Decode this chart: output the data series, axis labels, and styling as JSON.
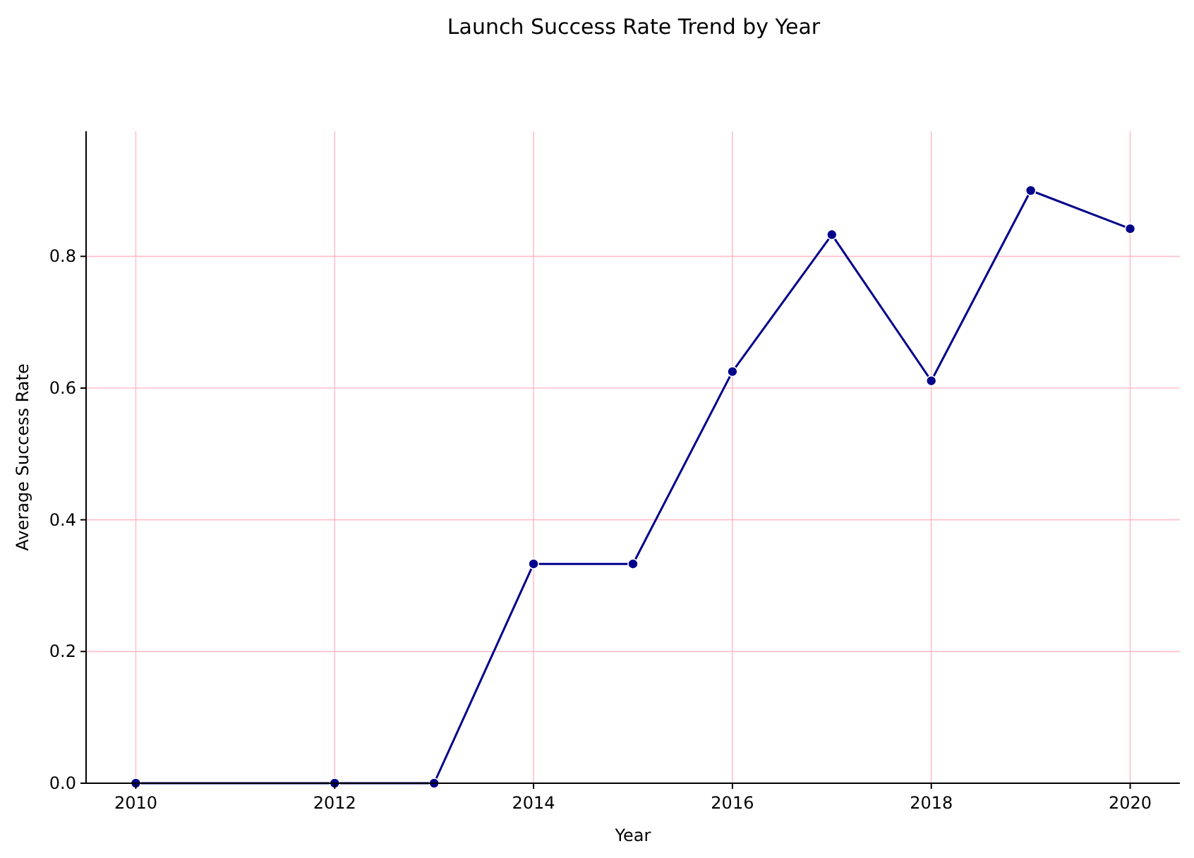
{
  "chart_data": {
    "type": "line",
    "title": "Launch Success Rate Trend by Year",
    "xlabel": "Year",
    "ylabel": "Average Success Rate",
    "x": [
      2010,
      2012,
      2013,
      2014,
      2015,
      2016,
      2017,
      2018,
      2019,
      2020
    ],
    "series": [
      {
        "color": "#00008b",
        "values": [
          0,
          0,
          0,
          0.333,
          0.333,
          0.625,
          0.833,
          0.611,
          0.9,
          0.842
        ]
      }
    ],
    "xlim": [
      2009.5,
      2020.5
    ],
    "xticks": [
      2010,
      2012,
      2014,
      2016,
      2018,
      2020
    ],
    "ylim": [
      0,
      0.99
    ],
    "yticks": [
      {
        "value": 0,
        "label": "0.0"
      },
      {
        "value": 0.2,
        "label": "0.2"
      },
      {
        "value": 0.4,
        "label": "0.4"
      },
      {
        "value": 0.6,
        "label": "0.6"
      },
      {
        "value": 0.8,
        "label": "0.8"
      }
    ],
    "grid": true,
    "marker": "circle",
    "line_style": "solid"
  }
}
